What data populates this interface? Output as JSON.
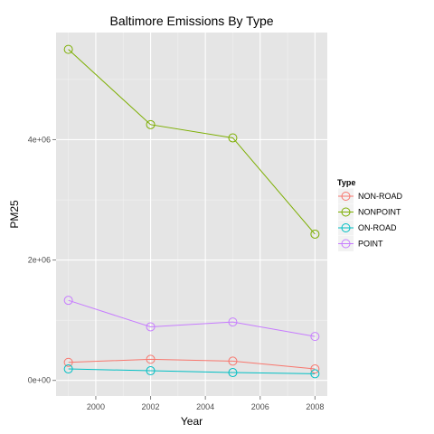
{
  "chart_data": {
    "type": "line",
    "title": "Baltimore Emissions By Type",
    "xlabel": "Year",
    "ylabel": "PM25",
    "x": [
      1999,
      2002,
      2005,
      2008
    ],
    "xlim": [
      1998.55,
      2008.45
    ],
    "ylim": [
      -260000,
      5780000
    ],
    "x_ticks": [
      2000,
      2002,
      2004,
      2006,
      2008
    ],
    "x_tick_labels": [
      "2000",
      "2002",
      "2004",
      "2006",
      "2008"
    ],
    "y_ticks": [
      0,
      2000000,
      4000000
    ],
    "y_tick_labels": [
      "0e+00",
      "2e+06",
      "4e+06"
    ],
    "grid": true,
    "legend_title": "Type",
    "legend_position": "right",
    "series": [
      {
        "name": "NON-ROAD",
        "color": "#F8766D",
        "values": [
          300000,
          350000,
          320000,
          190000
        ]
      },
      {
        "name": "NONPOINT",
        "color": "#7CAE00",
        "values": [
          5500000,
          4250000,
          4030000,
          2430000
        ]
      },
      {
        "name": "ON-ROAD",
        "color": "#00BFC4",
        "values": [
          190000,
          160000,
          130000,
          110000
        ]
      },
      {
        "name": "POINT",
        "color": "#C77CFF",
        "values": [
          1330000,
          890000,
          970000,
          730000
        ]
      }
    ]
  }
}
